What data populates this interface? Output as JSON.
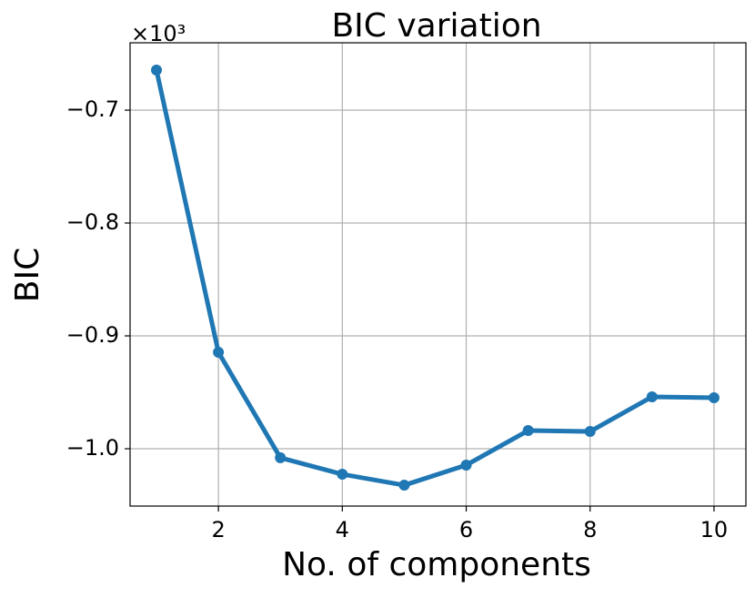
{
  "chart_data": {
    "type": "line",
    "title": "BIC variation",
    "x_label": "No. of components",
    "y_label": "BIC",
    "y_offset_label": "×10³",
    "x": [
      1,
      2,
      3,
      4,
      5,
      6,
      7,
      8,
      9,
      10
    ],
    "series": [
      {
        "name": "BIC",
        "color": "#1f77b4",
        "values": [
          -0.6645,
          -0.9145,
          -1.008,
          -1.0226,
          -1.0323,
          -1.0145,
          -0.9839,
          -0.9847,
          -0.954,
          -0.9548
        ]
      }
    ],
    "xlim": [
      0.574,
      10.515
    ],
    "ylim": [
      -1.0508,
      -0.6403
    ],
    "xticks": [
      2,
      4,
      6,
      8,
      10
    ],
    "yticks": [
      {
        "value": -1.0,
        "label": "−1.0"
      },
      {
        "value": -0.9,
        "label": "−0.9"
      },
      {
        "value": -0.8,
        "label": "−0.8"
      },
      {
        "value": -0.7,
        "label": "−0.7"
      }
    ],
    "grid": true
  }
}
